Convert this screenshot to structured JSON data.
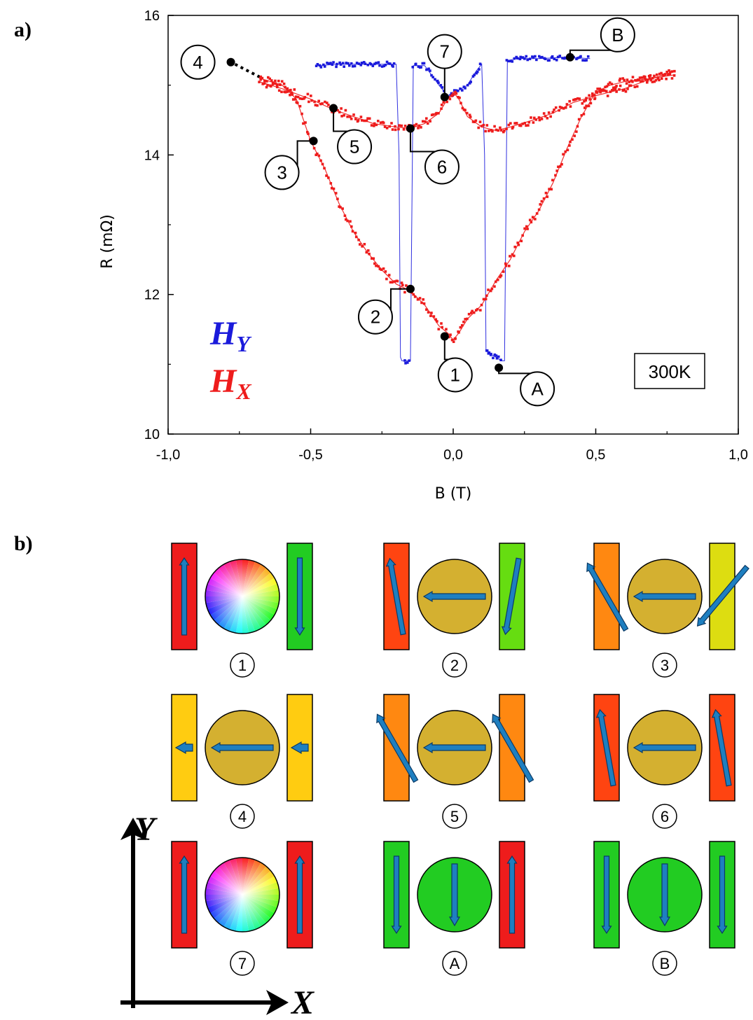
{
  "panel_a_label": "a)",
  "panel_b_label": "b)",
  "chart_data": {
    "type": "scatter",
    "xlabel": "B (T)",
    "ylabel": "R (mΩ)",
    "xlim": [
      -1.0,
      1.0
    ],
    "ylim": [
      10,
      16
    ],
    "xticks": [
      "-1,0",
      "-0,5",
      "0,0",
      "0,5",
      "1,0"
    ],
    "yticks": [
      "10",
      "12",
      "14",
      "16"
    ],
    "temperature": "300K",
    "legend": [
      {
        "letter": "H",
        "sub": "Y",
        "color": "#1a1adb"
      },
      {
        "letter": "H",
        "sub": "X",
        "color": "#ee1c1c"
      }
    ],
    "series": [
      {
        "name": "H_Y",
        "color": "#1a1adb",
        "x": [
          -0.48,
          -0.4,
          -0.3,
          -0.22,
          -0.2,
          -0.19,
          -0.185,
          -0.18,
          -0.17,
          -0.15,
          -0.14,
          -0.1,
          -0.05,
          -0.02,
          0.0,
          0.05,
          0.08,
          0.1,
          0.11,
          0.115,
          0.13,
          0.15,
          0.17,
          0.18,
          0.19,
          0.22,
          0.3,
          0.4,
          0.48
        ],
        "y": [
          15.28,
          15.3,
          15.3,
          15.3,
          15.3,
          14.0,
          11.1,
          11.05,
          11.05,
          11.05,
          15.28,
          15.28,
          15.0,
          14.85,
          14.88,
          15.0,
          15.2,
          15.3,
          14.0,
          11.2,
          11.15,
          11.1,
          11.05,
          11.05,
          15.35,
          15.38,
          15.38,
          15.4,
          15.38
        ]
      },
      {
        "name": "H_X",
        "color": "#ee1c1c",
        "x": [
          -0.68,
          -0.6,
          -0.55,
          -0.5,
          -0.45,
          -0.4,
          -0.35,
          -0.3,
          -0.25,
          -0.2,
          -0.15,
          -0.1,
          -0.05,
          -0.02,
          0.0,
          0.02,
          0.05,
          0.1,
          0.15,
          0.2,
          0.25,
          0.3,
          0.35,
          0.4,
          0.45,
          0.5,
          0.55,
          0.6,
          0.7,
          0.78
        ],
        "y": [
          15.1,
          15.0,
          14.8,
          14.2,
          13.8,
          13.3,
          12.9,
          12.6,
          12.35,
          12.15,
          12.05,
          11.85,
          11.55,
          11.45,
          11.35,
          11.45,
          11.65,
          11.85,
          12.2,
          12.5,
          12.9,
          13.2,
          13.6,
          14.1,
          14.55,
          14.9,
          15.0,
          15.05,
          15.1,
          15.15
        ]
      },
      {
        "name": "H_X",
        "color": "#ee1c1c",
        "x": [
          -0.68,
          -0.6,
          -0.5,
          -0.42,
          -0.35,
          -0.28,
          -0.2,
          -0.15,
          -0.1,
          -0.05,
          -0.02,
          0.0,
          0.02,
          0.05,
          0.1,
          0.15,
          0.2,
          0.28,
          0.35,
          0.42,
          0.5,
          0.6,
          0.7,
          0.78
        ],
        "y": [
          15.05,
          14.95,
          14.8,
          14.65,
          14.55,
          14.45,
          14.4,
          14.38,
          14.45,
          14.6,
          14.8,
          14.9,
          14.8,
          14.55,
          14.4,
          14.35,
          14.4,
          14.5,
          14.6,
          14.75,
          14.85,
          14.95,
          15.1,
          15.2
        ]
      }
    ],
    "callouts": [
      {
        "label": "4",
        "x": -0.78,
        "y": 15.33
      },
      {
        "label": "5",
        "x": -0.42,
        "y": 14.67
      },
      {
        "label": "3",
        "x": -0.49,
        "y": 14.2
      },
      {
        "label": "6",
        "x": -0.15,
        "y": 14.38
      },
      {
        "label": "7",
        "x": -0.03,
        "y": 14.83
      },
      {
        "label": "B",
        "x": 0.41,
        "y": 15.4
      },
      {
        "label": "2",
        "x": -0.15,
        "y": 12.08
      },
      {
        "label": "1",
        "x": -0.03,
        "y": 11.4
      },
      {
        "label": "A",
        "x": 0.16,
        "y": 10.95
      }
    ]
  },
  "panel_b": {
    "states": [
      {
        "label": "1",
        "left_color": "#ee1c1c",
        "right_color": "#22cc22",
        "center": "rainbow",
        "left_angle": 0,
        "right_angle": 180,
        "center_angle": null
      },
      {
        "label": "2",
        "left_color": "#ff4411",
        "right_color": "#66dd11",
        "center": "#d4b030",
        "left_angle": -10,
        "right_angle": 190,
        "center_angle": 270
      },
      {
        "label": "3",
        "left_color": "#ff8811",
        "right_color": "#dddd11",
        "center": "#d4b030",
        "left_angle": -30,
        "right_angle": 220,
        "center_angle": 270
      },
      {
        "label": "4",
        "left_color": "#ffcc11",
        "right_color": "#ffcc11",
        "center": "#d4b030",
        "left_angle": 270,
        "right_angle": 270,
        "center_angle": 270
      },
      {
        "label": "5",
        "left_color": "#ff8811",
        "right_color": "#ff8811",
        "center": "#d4b030",
        "left_angle": -30,
        "right_angle": -30,
        "center_angle": 270
      },
      {
        "label": "6",
        "left_color": "#ff4411",
        "right_color": "#ff4411",
        "center": "#d4b030",
        "left_angle": -10,
        "right_angle": -10,
        "center_angle": 270
      },
      {
        "label": "7",
        "left_color": "#ee1c1c",
        "right_color": "#ee1c1c",
        "center": "rainbow",
        "left_angle": 0,
        "right_angle": 0,
        "center_angle": null
      },
      {
        "label": "A",
        "left_color": "#22cc22",
        "right_color": "#ee1c1c",
        "center": "#22cc22",
        "left_angle": 180,
        "right_angle": 0,
        "center_angle": 180
      },
      {
        "label": "B",
        "left_color": "#22cc22",
        "right_color": "#22cc22",
        "center": "#22cc22",
        "left_angle": 180,
        "right_angle": 180,
        "center_angle": 180
      }
    ],
    "arrow_color": "#1e7fc0",
    "axis_x_label": "X",
    "axis_y_label": "Y"
  }
}
